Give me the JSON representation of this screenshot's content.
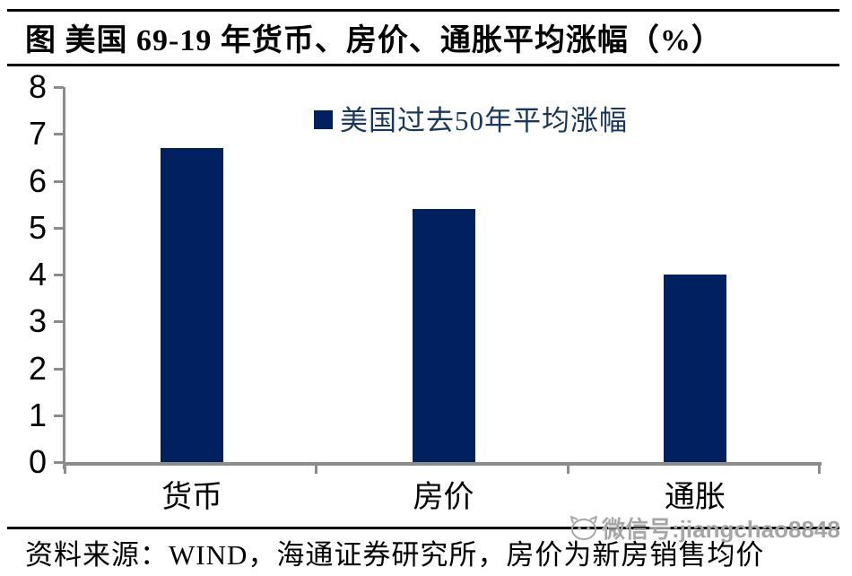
{
  "figure": {
    "title": "图 美国 69-19 年货币、房价、通胀平均涨幅（%）"
  },
  "chart_data": {
    "type": "bar",
    "title": "图 美国 69-19 年货币、房价、通胀平均涨幅（%）",
    "categories": [
      "货币",
      "房价",
      "通胀"
    ],
    "series": [
      {
        "name": "美国过去50年平均涨幅",
        "values": [
          6.7,
          5.4,
          4.0
        ]
      }
    ],
    "xlabel": "",
    "ylabel": "",
    "ylim": [
      0,
      8
    ],
    "ytick_step": 1,
    "grid": false,
    "legend_position": "top-center",
    "bar_color": "#002060",
    "axis_color": "#8c8c8c"
  },
  "legend": {
    "label": "美国过去50年平均涨幅",
    "swatch_color": "#002060"
  },
  "footer": {
    "source": "资料来源：WIND，海通证券研究所，房价为新房销售均价",
    "watermark": "微信号:jiangchao8848"
  }
}
